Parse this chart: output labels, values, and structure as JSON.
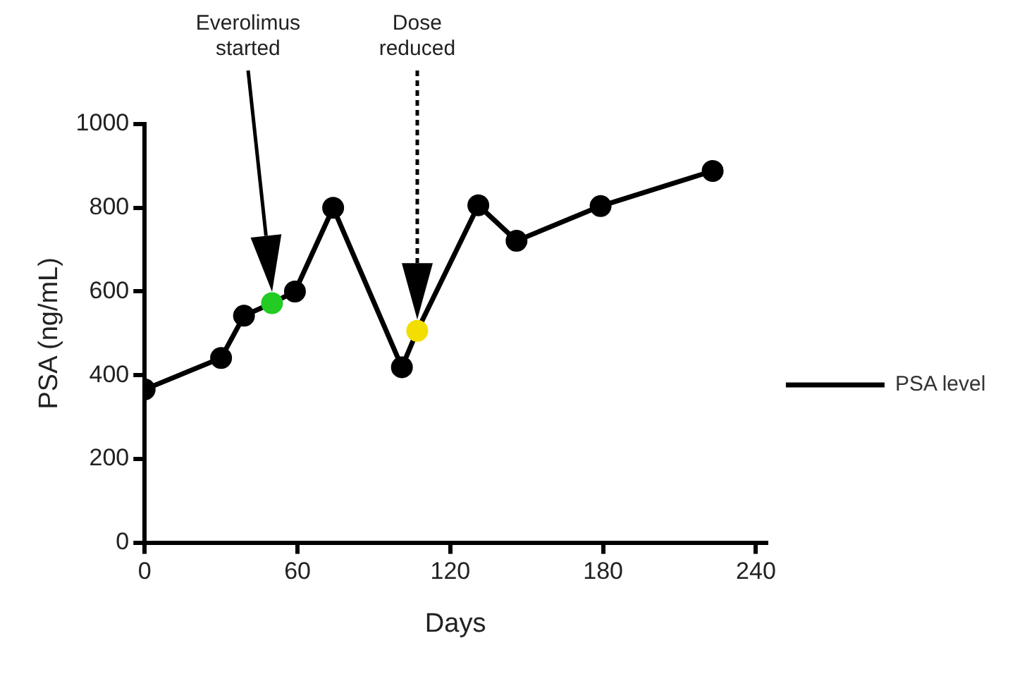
{
  "chart_data": {
    "type": "line",
    "xlabel": "Days",
    "ylabel": "PSA (ng/mL)",
    "x": [
      0,
      30,
      39,
      50,
      59,
      74,
      101,
      107,
      131,
      146,
      179,
      223
    ],
    "series": [
      {
        "name": "PSA level",
        "color": "#000000",
        "values": [
          366,
          441,
          542,
          572,
          600,
          800,
          419,
          506,
          806,
          721,
          804,
          888
        ],
        "colors": [
          "#000000",
          "#000000",
          "#000000",
          "#22cc22",
          "#000000",
          "#000000",
          "#000000",
          "#f2de00",
          "#000000",
          "#000000",
          "#000000",
          "#000000"
        ]
      }
    ],
    "xlim": [
      0,
      244
    ],
    "xticks": [
      0,
      60,
      120,
      180,
      240
    ],
    "ylim": [
      0,
      1000
    ],
    "yticks": [
      0,
      200,
      400,
      600,
      800,
      1000
    ],
    "grid": false,
    "legend": "right",
    "marker": "circle",
    "line_style": "solid",
    "annotations": [
      "Everolimus started",
      "Dose reduced"
    ]
  }
}
